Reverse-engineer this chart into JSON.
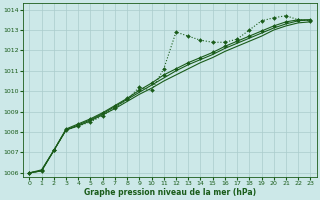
{
  "background_color": "#cce8e8",
  "grid_color": "#aacccc",
  "line_color": "#1a5c1a",
  "xlabel": "Graphe pression niveau de la mer (hPa)",
  "xlim": [
    -0.5,
    23.5
  ],
  "ylim": [
    1005.8,
    1014.3
  ],
  "yticks": [
    1006,
    1007,
    1008,
    1009,
    1010,
    1011,
    1012,
    1013,
    1014
  ],
  "xticks": [
    0,
    1,
    2,
    3,
    4,
    5,
    6,
    7,
    8,
    9,
    10,
    11,
    12,
    13,
    14,
    15,
    16,
    17,
    18,
    19,
    20,
    21,
    22,
    23
  ],
  "series": [
    {
      "x": [
        0,
        1,
        2,
        3,
        4,
        5,
        6,
        7,
        8,
        9,
        10,
        11,
        12,
        13,
        14,
        15,
        16,
        17,
        18,
        19,
        20,
        21,
        22,
        23
      ],
      "y": [
        1006.0,
        1006.1,
        1007.1,
        1008.1,
        1008.3,
        1008.5,
        1008.8,
        1009.2,
        1009.6,
        1010.2,
        1010.05,
        1011.1,
        1012.9,
        1012.7,
        1012.5,
        1012.4,
        1012.4,
        1012.55,
        1013.0,
        1013.45,
        1013.6,
        1013.7,
        1013.5,
        1013.45
      ],
      "linestyle": "dotted",
      "linewidth": 0.8,
      "marker": "D",
      "markersize": 2.0,
      "zorder": 5
    },
    {
      "x": [
        0,
        1,
        2,
        3,
        4,
        5,
        6,
        7,
        8,
        9,
        10,
        11,
        12,
        13,
        14,
        15,
        16,
        17,
        18,
        19,
        20,
        21,
        22,
        23
      ],
      "y": [
        1006.0,
        1006.1,
        1007.1,
        1008.1,
        1008.3,
        1008.55,
        1008.85,
        1009.15,
        1009.5,
        1009.85,
        1010.15,
        1010.5,
        1010.8,
        1011.1,
        1011.4,
        1011.65,
        1011.95,
        1012.2,
        1012.45,
        1012.7,
        1013.0,
        1013.2,
        1013.35,
        1013.4
      ],
      "linestyle": "solid",
      "linewidth": 0.8,
      "marker": "None",
      "markersize": 0,
      "zorder": 3
    },
    {
      "x": [
        0,
        1,
        2,
        3,
        4,
        5,
        6,
        7,
        8,
        9,
        10,
        11,
        12,
        13,
        14,
        15,
        16,
        17,
        18,
        19,
        20,
        21,
        22,
        23
      ],
      "y": [
        1006.0,
        1006.1,
        1007.1,
        1008.1,
        1008.35,
        1008.6,
        1008.9,
        1009.25,
        1009.6,
        1009.95,
        1010.3,
        1010.65,
        1011.0,
        1011.3,
        1011.55,
        1011.8,
        1012.1,
        1012.35,
        1012.6,
        1012.85,
        1013.1,
        1013.3,
        1013.45,
        1013.5
      ],
      "linestyle": "solid",
      "linewidth": 0.8,
      "marker": "None",
      "markersize": 0,
      "zorder": 3
    },
    {
      "x": [
        0,
        1,
        2,
        3,
        4,
        5,
        6,
        7,
        8,
        9,
        10,
        11,
        12,
        13,
        14,
        15,
        16,
        17,
        18,
        19,
        20,
        21,
        22,
        23
      ],
      "y": [
        1006.0,
        1006.15,
        1007.1,
        1008.15,
        1008.4,
        1008.65,
        1008.95,
        1009.3,
        1009.65,
        1010.05,
        1010.4,
        1010.8,
        1011.1,
        1011.4,
        1011.65,
        1011.9,
        1012.2,
        1012.45,
        1012.7,
        1012.95,
        1013.2,
        1013.4,
        1013.5,
        1013.5
      ],
      "linestyle": "solid",
      "linewidth": 0.8,
      "marker": "D",
      "markersize": 2.0,
      "zorder": 4
    }
  ]
}
